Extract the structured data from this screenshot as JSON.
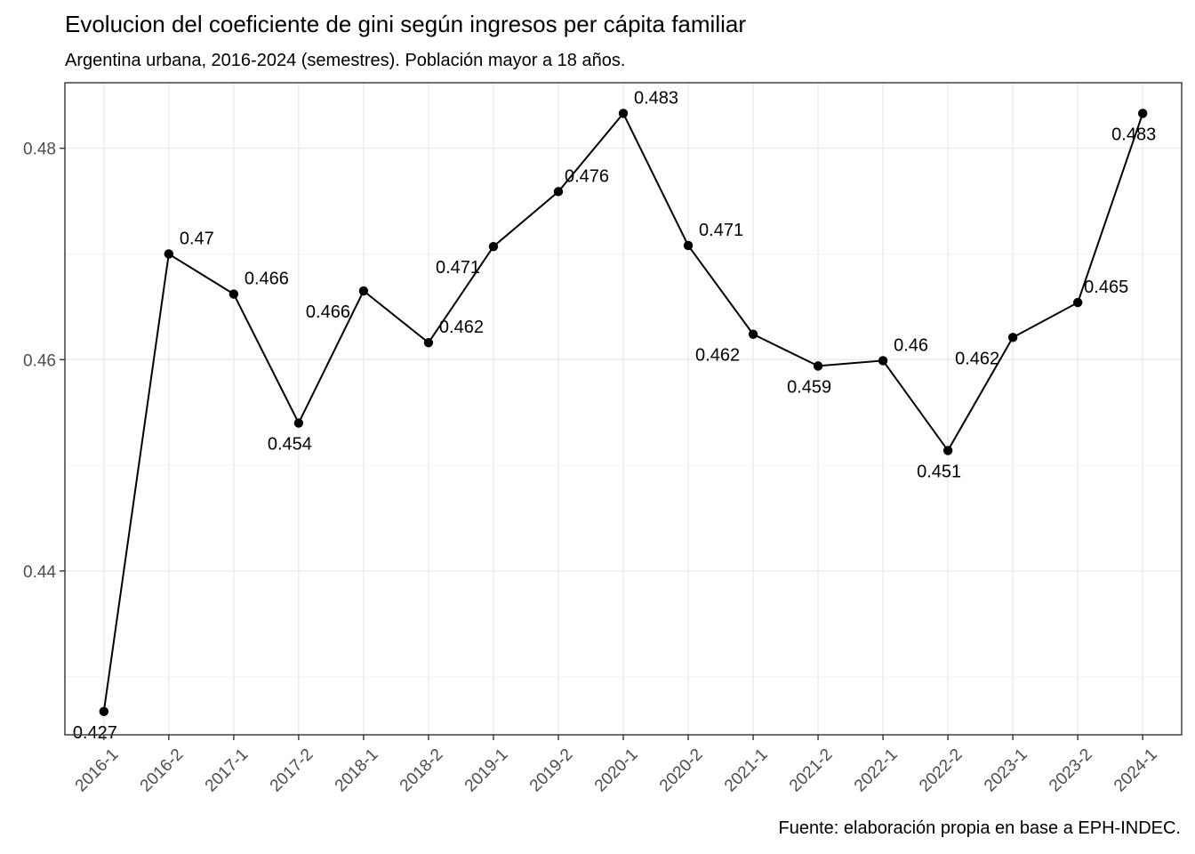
{
  "chart_data": {
    "type": "line",
    "title": "Evolucion del coeficiente de gini según ingresos per cápita familiar",
    "subtitle": "Argentina urbana, 2016-2024 (semestres). Población mayor a 18 años.",
    "caption": "Fuente: elaboración propia en base a EPH-INDEC.",
    "xlabel": "",
    "ylabel": "",
    "categories": [
      "2016-1",
      "2016-2",
      "2017-1",
      "2017-2",
      "2018-1",
      "2018-2",
      "2019-1",
      "2019-2",
      "2020-1",
      "2020-2",
      "2021-1",
      "2021-2",
      "2022-1",
      "2022-2",
      "2023-1",
      "2023-2",
      "2024-1"
    ],
    "values": [
      0.4267,
      0.47,
      0.4662,
      0.454,
      0.4665,
      0.4616,
      0.4707,
      0.4759,
      0.4833,
      0.4708,
      0.4624,
      0.4594,
      0.4599,
      0.4514,
      0.4621,
      0.4654,
      0.4833
    ],
    "data_labels": [
      "0.427",
      "0.47",
      "0.466",
      "0.454",
      "0.466",
      "0.462",
      "0.471",
      "0.476",
      "0.483",
      "0.471",
      "0.462",
      "0.459",
      "0.46",
      "0.451",
      "0.462",
      "0.465",
      "0.483"
    ],
    "label_positions": [
      "below",
      "above",
      "above",
      "below",
      "left",
      "above",
      "left",
      "right",
      "above",
      "above",
      "left",
      "below",
      "above",
      "below",
      "left",
      "right",
      "below"
    ],
    "ylim": [
      0.4245,
      0.4862
    ],
    "y_ticks": [
      0.44,
      0.46,
      0.48
    ],
    "y_tick_labels": [
      "0.44",
      "0.46",
      "0.48"
    ],
    "grid": true,
    "legend": "none",
    "colors": {
      "line": "#000000",
      "grid_major": "#ebebeb",
      "grid_minor": "#f4f4f4",
      "panel_border": "#333333",
      "tick_text": "#4d4d4d"
    }
  }
}
